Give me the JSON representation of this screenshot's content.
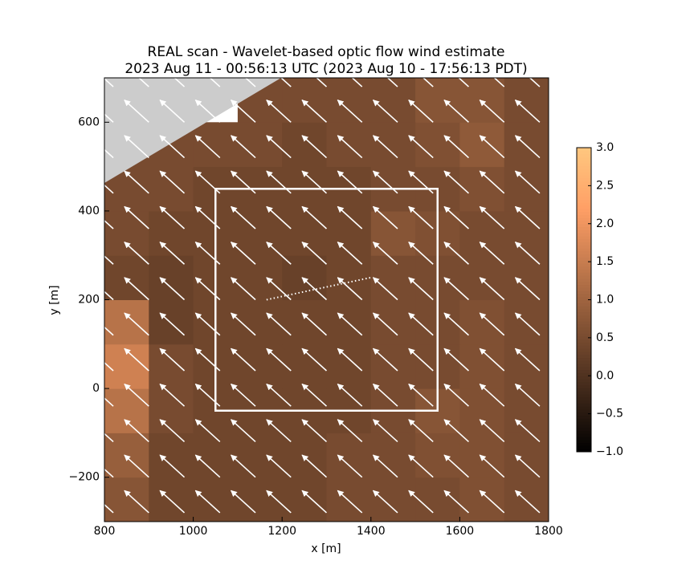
{
  "chart_data": {
    "type": "heatmap",
    "title": "REAL scan - Wavelet-based optic flow wind estimate",
    "subtitle": "2023 Aug 11 - 00:56:13 UTC (2023 Aug 10 - 17:56:13 PDT)",
    "xlabel": "x [m]",
    "ylabel": "y [m]",
    "colormap": "copper",
    "xlim": [
      800,
      1800
    ],
    "ylim": [
      -300,
      700
    ],
    "xticks": [
      800,
      1000,
      1200,
      1400,
      1600,
      1800
    ],
    "yticks": [
      {
        "value": -200,
        "label": "−200"
      },
      0,
      200,
      400,
      600
    ],
    "x_edges": [
      800,
      900,
      1000,
      1100,
      1200,
      1300,
      1400,
      1500,
      1600,
      1700,
      1800
    ],
    "y_edges": [
      -300,
      -200,
      -100,
      0,
      100,
      200,
      300,
      400,
      500,
      600,
      700
    ],
    "z": [
      [
        0.7,
        0.4,
        0.4,
        0.4,
        0.4,
        0.5,
        0.5,
        0.5,
        0.6,
        0.5
      ],
      [
        0.9,
        0.4,
        0.4,
        0.4,
        0.4,
        0.5,
        0.5,
        0.6,
        0.6,
        0.5
      ],
      [
        1.3,
        0.5,
        0.4,
        0.4,
        0.4,
        0.4,
        0.5,
        0.7,
        0.6,
        0.5
      ],
      [
        1.6,
        0.5,
        0.4,
        0.4,
        0.4,
        0.4,
        0.5,
        0.5,
        0.6,
        0.5
      ],
      [
        1.3,
        0.3,
        0.4,
        0.4,
        0.4,
        0.4,
        0.5,
        0.5,
        0.6,
        0.5
      ],
      [
        0.4,
        0.3,
        0.4,
        0.4,
        0.3,
        0.4,
        0.5,
        0.5,
        0.5,
        0.5
      ],
      [
        0.5,
        0.4,
        0.4,
        0.4,
        0.4,
        0.4,
        0.7,
        0.6,
        0.5,
        0.5
      ],
      [
        0.5,
        0.5,
        0.4,
        0.4,
        0.4,
        0.4,
        0.5,
        0.5,
        0.6,
        0.5
      ],
      [
        0.5,
        0.5,
        0.5,
        0.5,
        0.4,
        0.5,
        0.5,
        0.6,
        0.8,
        0.5
      ],
      [
        null,
        null,
        null,
        0.5,
        0.5,
        0.5,
        0.5,
        0.7,
        0.7,
        0.5
      ]
    ],
    "clim": [
      -1,
      3
    ],
    "cticks": [
      {
        "value": -1,
        "label": "−1.0"
      },
      {
        "value": -0.5,
        "label": "−0.5"
      },
      {
        "value": 0,
        "label": "0.0"
      },
      {
        "value": 0.5,
        "label": "0.5"
      },
      {
        "value": 1,
        "label": "1.0"
      },
      {
        "value": 1.5,
        "label": "1.5"
      },
      {
        "value": 2,
        "label": "2.0"
      },
      {
        "value": 2.5,
        "label": "2.5"
      },
      {
        "value": 3,
        "label": "3.0"
      }
    ],
    "quiver": {
      "x": [
        820,
        900,
        980,
        1060,
        1140,
        1220,
        1300,
        1380,
        1460,
        1540,
        1620,
        1700,
        1780
      ],
      "y": [
        -280,
        -200,
        -120,
        -40,
        40,
        120,
        200,
        280,
        360,
        440,
        520,
        600,
        680
      ],
      "u": -5.5,
      "v": 5.0,
      "color": "#ffffff"
    },
    "box": {
      "x": [
        1050,
        1550
      ],
      "y": [
        -50,
        450
      ]
    },
    "track": {
      "x": [
        1165,
        1400
      ],
      "y": [
        200,
        250
      ]
    }
  }
}
